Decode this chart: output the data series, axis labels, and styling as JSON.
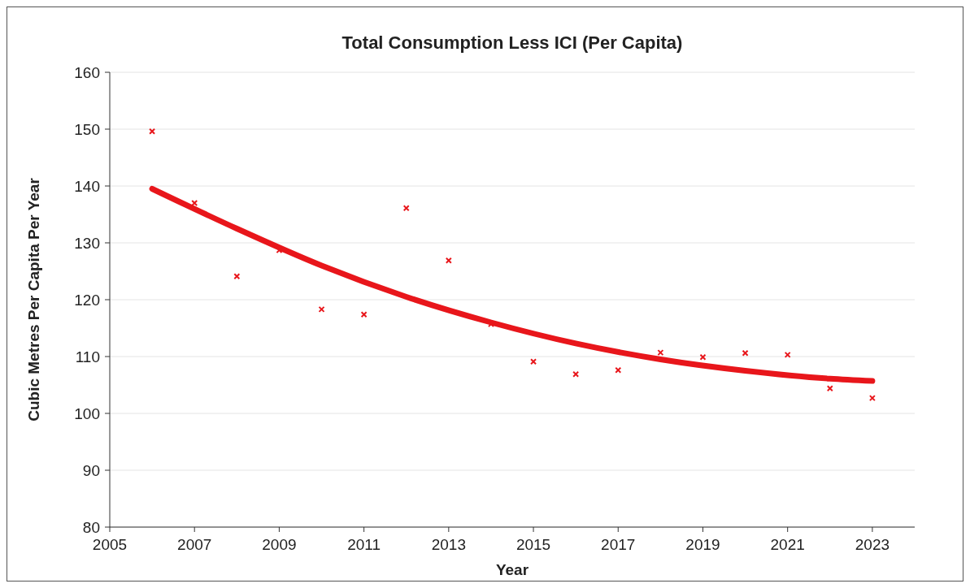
{
  "chart_data": {
    "type": "scatter",
    "title": "Total Consumption Less ICI (Per Capita)",
    "xlabel": "Year",
    "ylabel": "Cubic Metres Per Capita Per Year",
    "xlim": [
      2005,
      2024
    ],
    "xticks": [
      2005,
      2007,
      2009,
      2011,
      2013,
      2015,
      2017,
      2019,
      2021,
      2023
    ],
    "ylim": [
      80,
      160
    ],
    "yticks": [
      80,
      90,
      100,
      110,
      120,
      130,
      140,
      150,
      160
    ],
    "grid": "y",
    "marker": "cross",
    "x": [
      2006,
      2007,
      2008,
      2009,
      2010,
      2011,
      2012,
      2013,
      2014,
      2015,
      2016,
      2017,
      2018,
      2019,
      2020,
      2021,
      2022,
      2023
    ],
    "series": [
      {
        "color": "#e8161b",
        "values": [
          149.6,
          137,
          124.1,
          128.7,
          118.3,
          117.4,
          136.1,
          126.9,
          115.7,
          109.1,
          106.9,
          107.6,
          110.7,
          109.9,
          110.6,
          110.3,
          104.4,
          102.7
        ]
      },
      {
        "type": "line",
        "marker": "none",
        "color": "#e8161b",
        "x": [
          2006,
          2008,
          2010,
          2012,
          2014,
          2016,
          2018,
          2020,
          2022,
          2023
        ],
        "values": [
          139.5,
          132.5,
          126,
          120.5,
          116,
          112.3,
          109.5,
          107.5,
          106.1,
          105.7
        ]
      }
    ]
  }
}
